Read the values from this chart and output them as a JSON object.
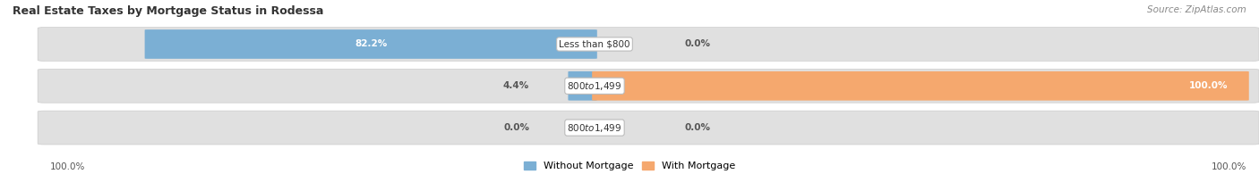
{
  "title": "Real Estate Taxes by Mortgage Status in Rodessa",
  "source": "Source: ZipAtlas.com",
  "categories": [
    "Less than $800",
    "$800 to $1,499",
    "$800 to $1,499"
  ],
  "without_mortgage": [
    82.2,
    4.4,
    0.0
  ],
  "with_mortgage": [
    0.0,
    100.0,
    0.0
  ],
  "without_mortgage_labels": [
    "82.2%",
    "4.4%",
    "0.0%"
  ],
  "with_mortgage_labels": [
    "0.0%",
    "100.0%",
    "0.0%"
  ],
  "bar_color_without": "#7bafd4",
  "bar_color_with": "#f5a86e",
  "bar_bg_color": "#e0e0e0",
  "title_fontsize": 9,
  "source_fontsize": 7.5,
  "label_fontsize": 7.5,
  "axis_max": 100.0,
  "fig_width": 14.06,
  "fig_height": 1.95,
  "legend_label_without": "Without Mortgage",
  "legend_label_with": "With Mortgage",
  "bottom_left_label": "100.0%",
  "bottom_right_label": "100.0%"
}
